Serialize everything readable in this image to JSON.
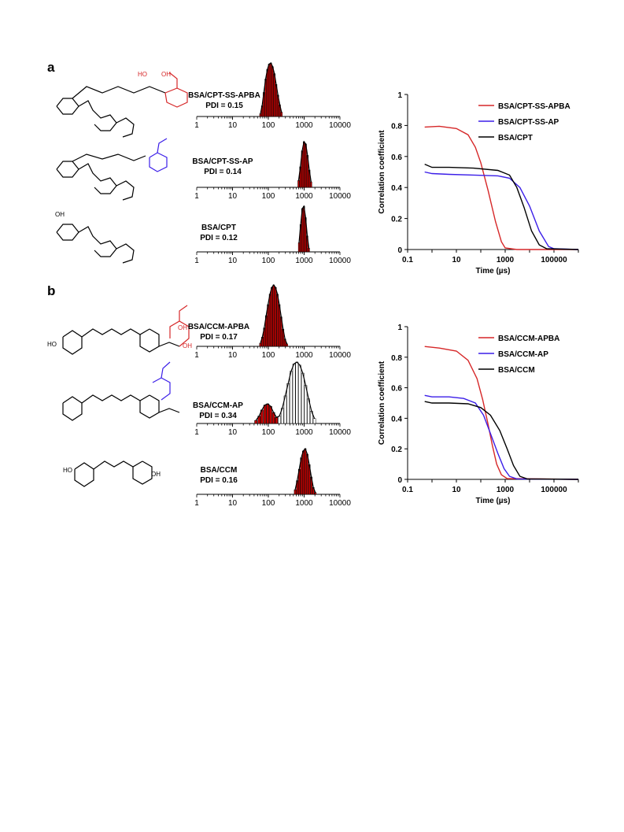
{
  "panels": [
    {
      "label": "a",
      "histograms": [
        {
          "name": "BSA/CPT-SS-APBA",
          "pdi": "PDI = 0.15",
          "bars": [
            [
              60,
              0.05
            ],
            [
              67,
              0.2
            ],
            [
              75,
              0.45
            ],
            [
              84,
              0.7
            ],
            [
              94,
              0.88
            ],
            [
              105,
              0.98
            ],
            [
              118,
              1.0
            ],
            [
              132,
              0.93
            ],
            [
              148,
              0.8
            ],
            [
              166,
              0.6
            ],
            [
              186,
              0.4
            ],
            [
              209,
              0.22
            ],
            [
              234,
              0.08
            ]
          ],
          "bar_color": "#c00000"
        },
        {
          "name": "BSA/CPT-SS-AP",
          "pdi": "PDI = 0.14",
          "bars": [
            [
              700,
              0.15
            ],
            [
              785,
              0.45
            ],
            [
              880,
              0.8
            ],
            [
              990,
              1.0
            ],
            [
              1110,
              0.95
            ],
            [
              1245,
              0.7
            ],
            [
              1395,
              0.38
            ],
            [
              1565,
              0.12
            ]
          ],
          "bar_color": "#c00000"
        },
        {
          "name": "BSA/CPT",
          "pdi": "PDI = 0.12",
          "bars": [
            [
              720,
              0.2
            ],
            [
              800,
              0.6
            ],
            [
              890,
              0.95
            ],
            [
              990,
              1.0
            ],
            [
              1100,
              0.75
            ],
            [
              1225,
              0.35
            ],
            [
              1360,
              0.08
            ]
          ],
          "bar_color": "#c00000"
        }
      ],
      "hist_ticks": [
        "1",
        "10",
        "100",
        "1000",
        "10000"
      ],
      "correlation": {
        "ylabel": "Correlation coefficient",
        "xlabel": "Time (µs)",
        "yticks": [
          "0",
          "0.2",
          "0.4",
          "0.6",
          "0.8",
          "1"
        ],
        "xticks": [
          "0.1",
          "10",
          "1000",
          "100000"
        ],
        "series": [
          {
            "name": "BSA/CPT-SS-APBA",
            "color": "#d62728",
            "points": [
              [
                0.5,
                0.79
              ],
              [
                2,
                0.795
              ],
              [
                10,
                0.78
              ],
              [
                30,
                0.74
              ],
              [
                60,
                0.66
              ],
              [
                100,
                0.56
              ],
              [
                200,
                0.38
              ],
              [
                400,
                0.18
              ],
              [
                700,
                0.05
              ],
              [
                1000,
                0.01
              ],
              [
                3000,
                0.0
              ],
              [
                1000000,
                0.0
              ]
            ]
          },
          {
            "name": "BSA/CPT-SS-AP",
            "color": "#3b1ee8",
            "points": [
              [
                0.5,
                0.5
              ],
              [
                1,
                0.49
              ],
              [
                5,
                0.485
              ],
              [
                50,
                0.48
              ],
              [
                500,
                0.475
              ],
              [
                1500,
                0.46
              ],
              [
                4000,
                0.4
              ],
              [
                10000,
                0.28
              ],
              [
                25000,
                0.12
              ],
              [
                60000,
                0.02
              ],
              [
                100000,
                0.005
              ],
              [
                1000000,
                0.0
              ]
            ]
          },
          {
            "name": "BSA/CPT",
            "color": "#000000",
            "points": [
              [
                0.5,
                0.55
              ],
              [
                1,
                0.53
              ],
              [
                5,
                0.53
              ],
              [
                50,
                0.525
              ],
              [
                500,
                0.51
              ],
              [
                1500,
                0.48
              ],
              [
                3000,
                0.4
              ],
              [
                6000,
                0.27
              ],
              [
                12000,
                0.12
              ],
              [
                25000,
                0.03
              ],
              [
                50000,
                0.005
              ],
              [
                1000000,
                0.0
              ]
            ]
          }
        ],
        "legend": [
          "BSA/CPT-SS-APBA",
          "BSA/CPT-SS-AP",
          "BSA/CPT"
        ]
      }
    },
    {
      "label": "b",
      "histograms": [
        {
          "name": "BSA/CCM-APBA",
          "pdi": "PDI = 0.17",
          "bars": [
            [
              60,
              0.05
            ],
            [
              68,
              0.15
            ],
            [
              77,
              0.3
            ],
            [
              87,
              0.5
            ],
            [
              98,
              0.68
            ],
            [
              111,
              0.85
            ],
            [
              125,
              0.96
            ],
            [
              141,
              1.0
            ],
            [
              159,
              0.96
            ],
            [
              180,
              0.85
            ],
            [
              203,
              0.68
            ],
            [
              229,
              0.48
            ],
            [
              259,
              0.28
            ],
            [
              292,
              0.12
            ],
            [
              330,
              0.04
            ]
          ],
          "bar_color": "#c00000"
        },
        {
          "name": "BSA/CCM-AP",
          "pdi": "PDI = 0.34",
          "bars": [
            [
              45,
              0.05
            ],
            [
              55,
              0.12
            ],
            [
              66,
              0.22
            ],
            [
              80,
              0.3
            ],
            [
              96,
              0.32
            ],
            [
              116,
              0.28
            ],
            [
              140,
              0.18
            ],
            [
              169,
              0.1
            ],
            [
              204,
              0.12
            ],
            [
              246,
              0.25
            ],
            [
              297,
              0.45
            ],
            [
              358,
              0.65
            ],
            [
              432,
              0.85
            ],
            [
              521,
              0.97
            ],
            [
              629,
              1.0
            ],
            [
              759,
              0.95
            ],
            [
              916,
              0.82
            ],
            [
              1105,
              0.62
            ],
            [
              1333,
              0.4
            ],
            [
              1608,
              0.2
            ],
            [
              1940,
              0.08
            ]
          ],
          "bar_color": "#c00000"
        },
        {
          "name": "BSA/CCM",
          "pdi": "PDI = 0.16",
          "bars": [
            [
              560,
              0.1
            ],
            [
              640,
              0.3
            ],
            [
              730,
              0.55
            ],
            [
              830,
              0.8
            ],
            [
              945,
              0.95
            ],
            [
              1075,
              1.0
            ],
            [
              1225,
              0.88
            ],
            [
              1395,
              0.65
            ],
            [
              1590,
              0.38
            ],
            [
              1810,
              0.15
            ],
            [
              2060,
              0.04
            ]
          ],
          "bar_color": "#c00000"
        }
      ],
      "hist_ticks": [
        "1",
        "10",
        "100",
        "1000",
        "10000"
      ],
      "correlation": {
        "ylabel": "Correlation coefficient",
        "xlabel": "Time (µs)",
        "yticks": [
          "0",
          "0.2",
          "0.4",
          "0.6",
          "0.8",
          "1"
        ],
        "xticks": [
          "0.1",
          "10",
          "1000",
          "100000"
        ],
        "series": [
          {
            "name": "BSA/CCM-APBA",
            "color": "#d62728",
            "points": [
              [
                0.5,
                0.87
              ],
              [
                2,
                0.86
              ],
              [
                10,
                0.84
              ],
              [
                30,
                0.78
              ],
              [
                70,
                0.66
              ],
              [
                120,
                0.52
              ],
              [
                200,
                0.36
              ],
              [
                300,
                0.22
              ],
              [
                450,
                0.1
              ],
              [
                700,
                0.03
              ],
              [
                1200,
                0.005
              ],
              [
                1000000,
                0.0
              ]
            ]
          },
          {
            "name": "BSA/CCM-AP",
            "color": "#3b1ee8",
            "points": [
              [
                0.5,
                0.55
              ],
              [
                1,
                0.54
              ],
              [
                5,
                0.54
              ],
              [
                20,
                0.53
              ],
              [
                60,
                0.5
              ],
              [
                130,
                0.42
              ],
              [
                250,
                0.3
              ],
              [
                500,
                0.17
              ],
              [
                900,
                0.07
              ],
              [
                1500,
                0.02
              ],
              [
                3000,
                0.003
              ],
              [
                1000000,
                0.0
              ]
            ]
          },
          {
            "name": "BSA/CCM",
            "color": "#000000",
            "points": [
              [
                0.5,
                0.51
              ],
              [
                1,
                0.5
              ],
              [
                5,
                0.5
              ],
              [
                30,
                0.495
              ],
              [
                100,
                0.47
              ],
              [
                250,
                0.42
              ],
              [
                600,
                0.32
              ],
              [
                1200,
                0.2
              ],
              [
                2200,
                0.09
              ],
              [
                4000,
                0.02
              ],
              [
                8000,
                0.003
              ],
              [
                1000000,
                0.0
              ]
            ]
          }
        ],
        "legend": [
          "BSA/CCM-APBA",
          "BSA/CCM-AP",
          "BSA/CCM"
        ]
      }
    }
  ],
  "chart_data": [
    {
      "type": "bar",
      "title": "",
      "categories": [
        "BSA/CPT-SS-APBA",
        "BSA/CPT-SS-AP",
        "BSA/CPT"
      ],
      "x_scale": "log",
      "xlim": [
        1,
        10000
      ],
      "peaks_nm": [
        118,
        990,
        990
      ],
      "pdi": [
        0.15,
        0.14,
        0.12
      ]
    },
    {
      "type": "line",
      "title": "",
      "xlabel": "Time (µs)",
      "ylabel": "Correlation coefficient",
      "x_scale": "log",
      "ylim": [
        0,
        1
      ],
      "xlim": [
        0.1,
        1000000
      ],
      "series_names": [
        "BSA/CPT-SS-APBA",
        "BSA/CPT-SS-AP",
        "BSA/CPT"
      ]
    },
    {
      "type": "bar",
      "title": "",
      "categories": [
        "BSA/CCM-APBA",
        "BSA/CCM-AP",
        "BSA/CCM"
      ],
      "x_scale": "log",
      "xlim": [
        1,
        10000
      ],
      "peaks_nm": [
        141,
        629,
        1075
      ],
      "pdi": [
        0.17,
        0.34,
        0.16
      ]
    },
    {
      "type": "line",
      "title": "",
      "xlabel": "Time (µs)",
      "ylabel": "Correlation coefficient",
      "x_scale": "log",
      "ylim": [
        0,
        1
      ],
      "xlim": [
        0.1,
        1000000
      ],
      "series_names": [
        "BSA/CCM-APBA",
        "BSA/CCM-AP",
        "BSA/CCM"
      ]
    }
  ]
}
